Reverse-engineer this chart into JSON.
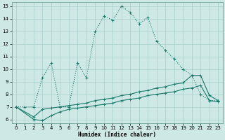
{
  "xlabel": "Humidex (Indice chaleur)",
  "ylabel": "",
  "bg_color": "#cde8e5",
  "grid_color": "#aacfcc",
  "line_color": "#1a7a6a",
  "xlim": [
    -0.5,
    23.5
  ],
  "ylim": [
    5.7,
    15.3
  ],
  "xticks": [
    0,
    1,
    2,
    3,
    4,
    5,
    6,
    7,
    8,
    9,
    10,
    11,
    12,
    13,
    14,
    15,
    16,
    17,
    18,
    19,
    20,
    21,
    22,
    23
  ],
  "yticks": [
    6,
    7,
    8,
    9,
    10,
    11,
    12,
    13,
    14,
    15
  ],
  "line1_x": [
    0,
    1,
    2,
    3,
    4,
    5,
    6,
    7,
    8,
    9,
    10,
    11,
    12,
    13,
    14,
    15,
    16,
    17,
    18,
    19,
    20,
    21,
    22,
    23
  ],
  "line1_y": [
    7.0,
    7.0,
    7.0,
    9.3,
    10.5,
    7.0,
    7.0,
    10.5,
    9.3,
    13.0,
    14.2,
    13.9,
    15.0,
    14.5,
    13.6,
    14.1,
    12.2,
    11.5,
    10.8,
    10.0,
    9.5,
    8.0,
    7.5,
    7.5
  ],
  "line2_x": [
    0,
    2,
    3,
    4,
    5,
    6,
    7,
    8,
    9,
    10,
    11,
    12,
    13,
    14,
    15,
    16,
    17,
    18,
    19,
    20,
    21,
    22,
    23
  ],
  "line2_y": [
    7.0,
    6.2,
    6.8,
    6.9,
    7.0,
    7.1,
    7.2,
    7.3,
    7.5,
    7.6,
    7.7,
    7.9,
    8.0,
    8.2,
    8.3,
    8.5,
    8.6,
    8.8,
    8.9,
    9.5,
    9.5,
    7.9,
    7.5
  ],
  "line3_x": [
    0,
    2,
    3,
    4,
    5,
    6,
    7,
    8,
    9,
    10,
    11,
    12,
    13,
    14,
    15,
    16,
    17,
    18,
    19,
    20,
    21,
    22,
    23
  ],
  "line3_y": [
    7.0,
    6.0,
    5.9,
    6.3,
    6.6,
    6.8,
    6.9,
    7.0,
    7.1,
    7.2,
    7.3,
    7.5,
    7.6,
    7.7,
    7.9,
    8.0,
    8.1,
    8.2,
    8.4,
    8.5,
    8.7,
    7.5,
    7.4
  ]
}
